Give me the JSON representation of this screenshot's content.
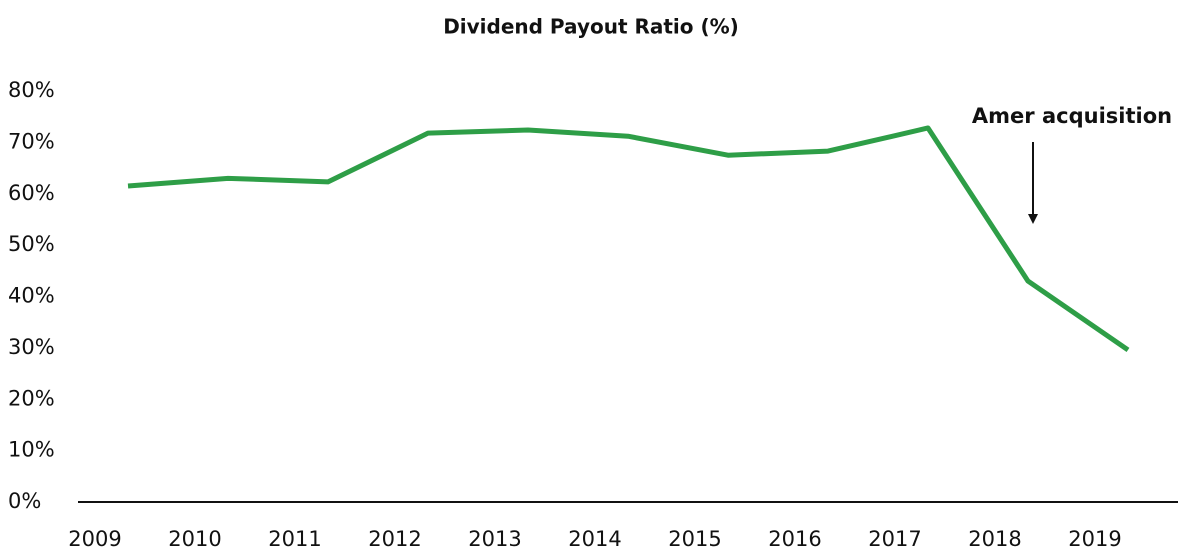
{
  "chart_data": {
    "type": "line",
    "title": "Dividend Payout Ratio (%)",
    "categories": [
      "2009",
      "2010",
      "2011",
      "2012",
      "2013",
      "2014",
      "2015",
      "2016",
      "2017",
      "2018",
      "2019"
    ],
    "series": [
      {
        "name": "Dividend payout ratio",
        "color": "#2e9e47",
        "values": [
          61.5,
          63.0,
          62.3,
          71.8,
          72.4,
          71.2,
          67.5,
          68.3,
          72.8,
          43.0,
          29.6
        ]
      }
    ],
    "ylim": [
      0,
      80
    ],
    "yticks": [
      {
        "value": 0,
        "label": "0%"
      },
      {
        "value": 10,
        "label": "10%"
      },
      {
        "value": 20,
        "label": "20%"
      },
      {
        "value": 30,
        "label": "30%"
      },
      {
        "value": 40,
        "label": "40%"
      },
      {
        "value": 50,
        "label": "50%"
      },
      {
        "value": 60,
        "label": "60%"
      },
      {
        "value": 70,
        "label": "70%"
      },
      {
        "value": 80,
        "label": "80%"
      }
    ],
    "annotation": "Amer acquisition",
    "grid": false
  }
}
